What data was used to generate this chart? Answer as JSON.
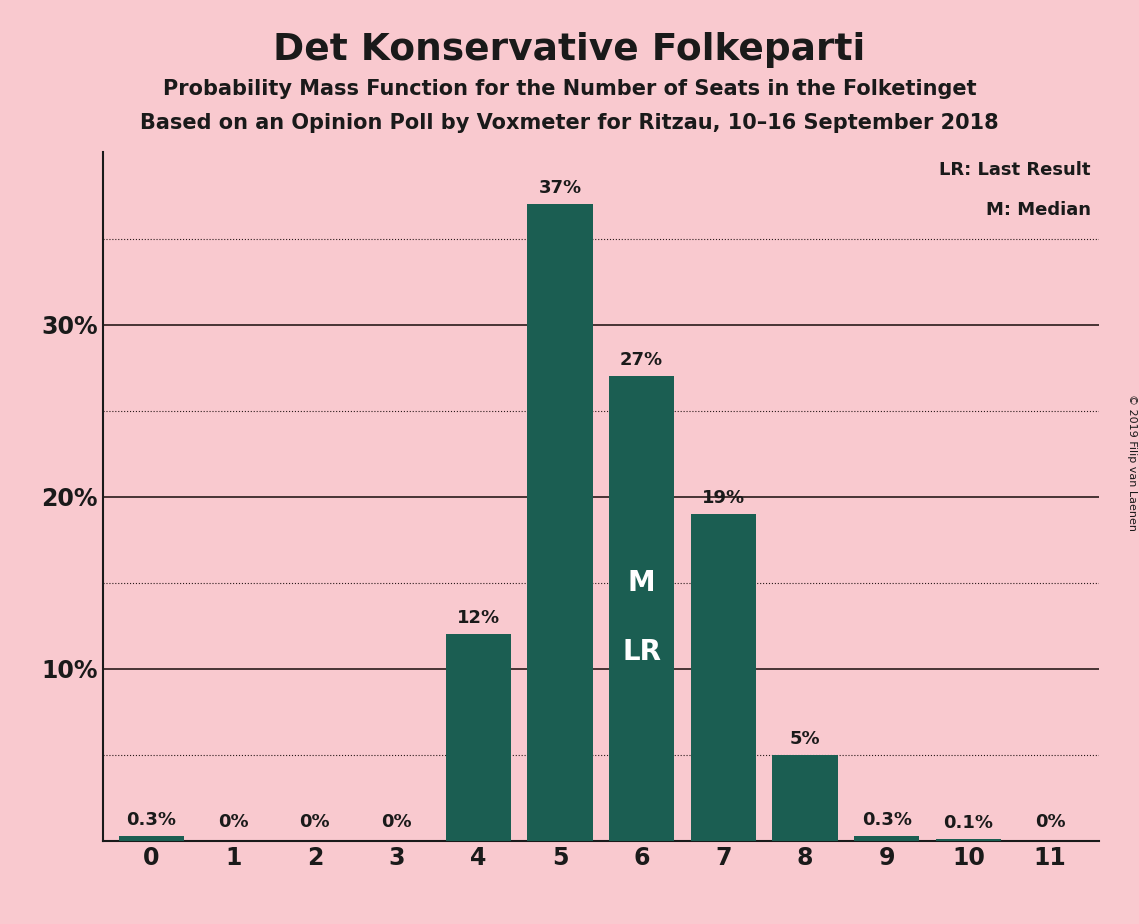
{
  "title": "Det Konservative Folkeparti",
  "subtitle1": "Probability Mass Function for the Number of Seats in the Folketinget",
  "subtitle2": "Based on an Opinion Poll by Voxmeter for Ritzau, 10–16 September 2018",
  "copyright": "© 2019 Filip van Laenen",
  "seats": [
    0,
    1,
    2,
    3,
    4,
    5,
    6,
    7,
    8,
    9,
    10,
    11
  ],
  "probabilities": [
    0.3,
    0.0,
    0.0,
    0.0,
    12.0,
    37.0,
    27.0,
    19.0,
    5.0,
    0.3,
    0.1,
    0.0
  ],
  "bar_color": "#1b5e52",
  "background_color": "#f9c9cf",
  "text_color": "#1a1a1a",
  "legend_text1": "LR: Last Result",
  "legend_text2": "M: Median",
  "median_label_seat": 6,
  "lr_label_seat": 6,
  "median_label": "M",
  "lr_label": "LR",
  "ylim": [
    0,
    40
  ],
  "solid_grid": [
    10,
    20,
    30
  ],
  "dotted_grid": [
    5,
    15,
    25,
    35
  ],
  "grid_color": "#2a1a1a",
  "figsize": [
    11.39,
    9.24
  ],
  "dpi": 100
}
